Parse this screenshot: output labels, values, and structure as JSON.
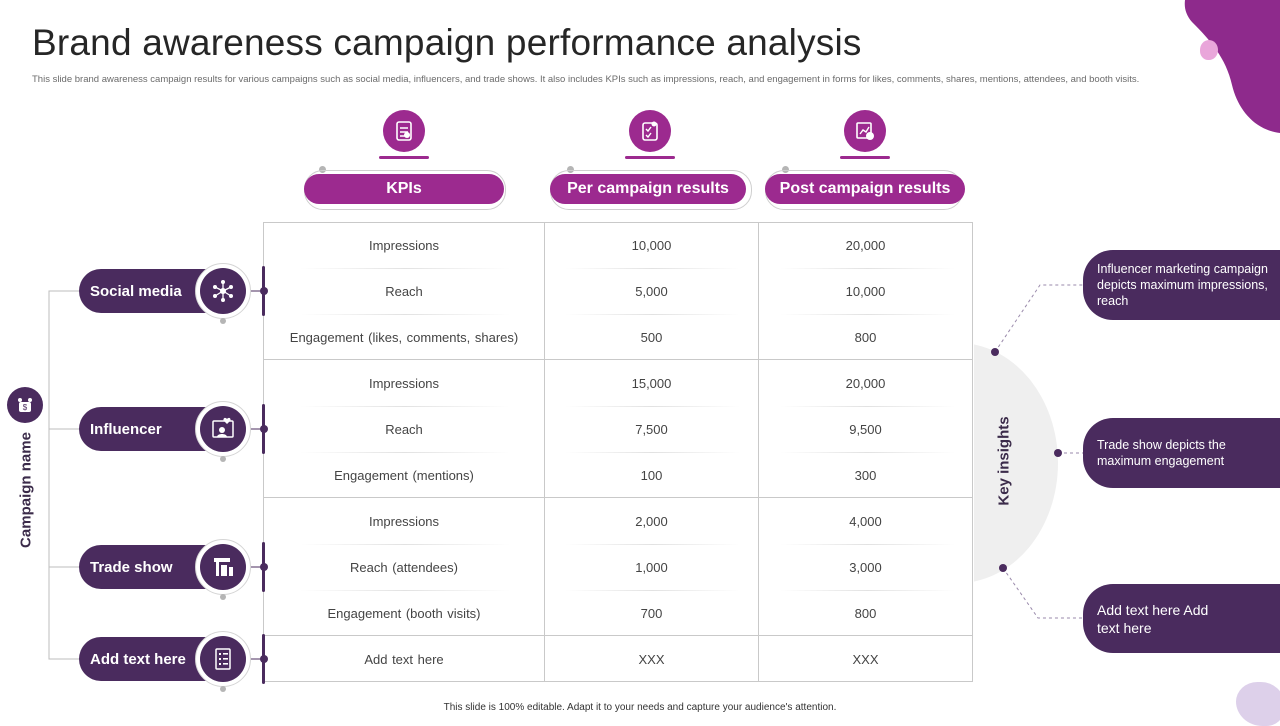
{
  "title": "Brand awareness campaign performance analysis",
  "subtitle": "This slide brand awareness campaign results for various campaigns such as social media, influencers, and trade shows. It also includes KPIs such as impressions, reach, and engagement in forms for likes, comments, shares, mentions, attendees, and booth visits.",
  "columns": [
    "KPIs",
    "Per campaign results",
    "Post campaign results"
  ],
  "row_axis_label": "Campaign name",
  "campaigns": [
    "Social media",
    "Influencer",
    "Trade show",
    "Add  text here"
  ],
  "rows": [
    [
      "Impressions",
      "10,000",
      "20,000"
    ],
    [
      "Reach",
      "5,000",
      "10,000"
    ],
    [
      "Engagement  (likes, comments, shares)",
      "500",
      "800"
    ],
    [
      "Impressions",
      "15,000",
      "20,000"
    ],
    [
      "Reach",
      "7,500",
      "9,500"
    ],
    [
      "Engagement  (mentions)",
      "100",
      "300"
    ],
    [
      "Impressions",
      "2,000",
      "4,000"
    ],
    [
      "Reach  (attendees)",
      "1,000",
      "3,000"
    ],
    [
      "Engagement  (booth visits)",
      "700",
      "800"
    ],
    [
      "Add text here",
      "XXX",
      "XXX"
    ]
  ],
  "key_insights_label": "Key insights",
  "insights": [
    "Influencer  marketing campaign depicts maximum impressions, reach",
    "Trade show depicts the maximum engagement",
    "Add text here Add text here"
  ],
  "footer": "This slide is 100% editable.  Adapt it to your needs and capture your audience's attention.",
  "colors": {
    "magenta": "#9c2a8f",
    "dark_purple": "#4a2b5e",
    "light_purple": "#dcc6e6"
  }
}
